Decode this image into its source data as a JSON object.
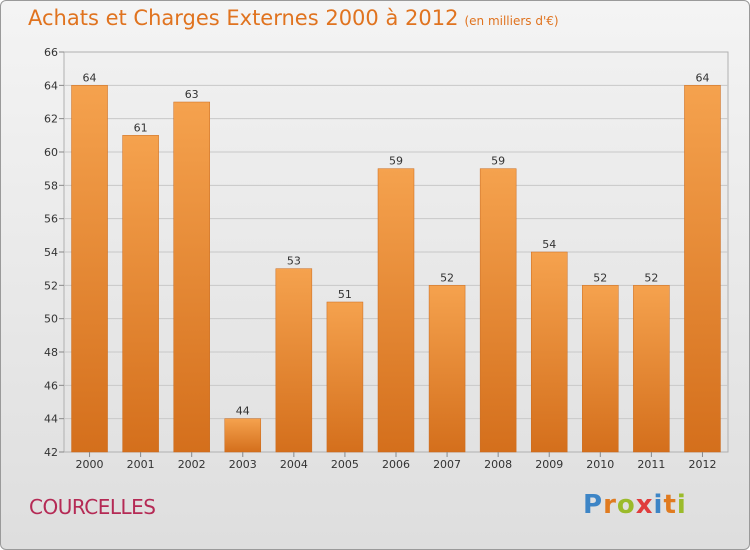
{
  "title": "Achats et Charges Externes 2000 à 2012",
  "unit": "(en milliers d'€)",
  "town": "COURCELLES",
  "logo": {
    "letters": [
      "P",
      "r",
      "o",
      "x",
      "i",
      "t",
      "i"
    ],
    "colors": [
      "#3d85c6",
      "#e07b20",
      "#9bbb2b",
      "#e03c3c",
      "#3d85c6",
      "#e07b20",
      "#9bbb2b"
    ]
  },
  "colors": {
    "bar_top": "#f5a24e",
    "bar_bottom": "#d46f1c",
    "title": "#e0731f",
    "town": "#b52a55"
  },
  "chart_data": {
    "type": "bar",
    "categories": [
      "2000",
      "2001",
      "2002",
      "2003",
      "2004",
      "2005",
      "2006",
      "2007",
      "2008",
      "2009",
      "2010",
      "2011",
      "2012"
    ],
    "values": [
      64,
      61,
      63,
      44,
      53,
      51,
      59,
      52,
      59,
      54,
      52,
      52,
      64
    ],
    "ylim": [
      42,
      66
    ],
    "yticks": [
      42,
      44,
      46,
      48,
      50,
      52,
      54,
      56,
      58,
      60,
      62,
      64,
      66
    ],
    "grid": true,
    "title": "Achats et Charges Externes 2000 à 2012",
    "xlabel": "",
    "ylabel": ""
  }
}
